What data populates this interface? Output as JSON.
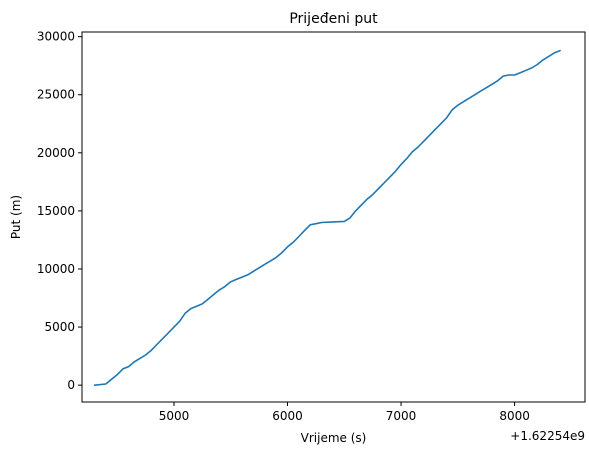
{
  "chart_data": {
    "type": "line",
    "title": "Prijeđeni put",
    "xlabel": "Vrijeme (s)",
    "ylabel": "Put (m)",
    "x_offset_label": "+1.62254e9",
    "grid": false,
    "xlim": [
      4190,
      8620
    ],
    "ylim": [
      -1450,
      30400
    ],
    "x_ticks": [
      5000,
      6000,
      7000,
      8000
    ],
    "x_tick_labels": [
      "5000",
      "6000",
      "7000",
      "8000"
    ],
    "y_ticks": [
      0,
      5000,
      10000,
      15000,
      20000,
      25000,
      30000
    ],
    "y_tick_labels": [
      "0",
      "5000",
      "10000",
      "15000",
      "20000",
      "25000",
      "30000"
    ],
    "series": [
      {
        "color": "#1f77b4",
        "x": [
          4300,
          4400,
          4450,
          4500,
          4550,
          4600,
          4650,
          4700,
          4750,
          4800,
          4850,
          4900,
          4950,
          5000,
          5050,
          5100,
          5150,
          5200,
          5250,
          5300,
          5350,
          5400,
          5450,
          5500,
          5550,
          5600,
          5650,
          5700,
          5750,
          5800,
          5850,
          5900,
          5950,
          6000,
          6050,
          6100,
          6150,
          6200,
          6250,
          6300,
          6400,
          6500,
          6550,
          6600,
          6650,
          6700,
          6750,
          6800,
          6850,
          6900,
          6950,
          7000,
          7050,
          7100,
          7150,
          7200,
          7250,
          7300,
          7350,
          7400,
          7450,
          7500,
          7550,
          7600,
          7650,
          7700,
          7750,
          7800,
          7850,
          7900,
          7950,
          8000,
          8050,
          8100,
          8150,
          8200,
          8250,
          8300,
          8350,
          8400
        ],
        "y": [
          0,
          100,
          500,
          900,
          1400,
          1600,
          2000,
          2300,
          2600,
          3000,
          3500,
          4000,
          4500,
          5000,
          5500,
          6200,
          6600,
          6800,
          7000,
          7400,
          7800,
          8200,
          8500,
          8900,
          9100,
          9300,
          9500,
          9800,
          10100,
          10400,
          10700,
          11000,
          11400,
          11900,
          12300,
          12800,
          13300,
          13800,
          13900,
          14000,
          14050,
          14100,
          14400,
          15000,
          15500,
          16000,
          16400,
          16900,
          17400,
          17900,
          18400,
          19000,
          19500,
          20100,
          20500,
          21000,
          21500,
          22000,
          22500,
          23000,
          23700,
          24100,
          24400,
          24700,
          25000,
          25300,
          25600,
          25900,
          26200,
          26600,
          26700,
          26700,
          26900,
          27100,
          27300,
          27600,
          28000,
          28300,
          28600,
          28800
        ]
      }
    ]
  }
}
